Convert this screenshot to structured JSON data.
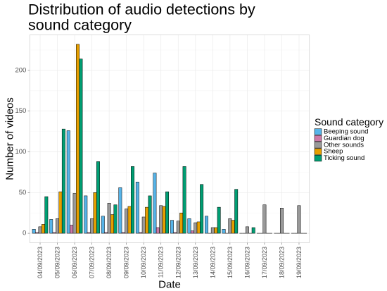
{
  "chart_data": {
    "type": "bar",
    "title": [
      "Distribution of audio detections by",
      "sound category"
    ],
    "xlabel": "Date",
    "ylabel": "Number of videos",
    "categories": [
      "04/09/2023",
      "05/09/2023",
      "06/09/2023",
      "07/09/2023",
      "08/09/2023",
      "09/09/2023",
      "10/09/2023",
      "11/09/2023",
      "12/09/2023",
      "13/09/2023",
      "14/09/2023",
      "15/09/2023",
      "16/09/2023",
      "17/09/2023",
      "18/09/2023",
      "19/09/2023"
    ],
    "yticks": [
      0,
      50,
      100,
      150,
      200
    ],
    "ylim": [
      -11.6,
      243.6
    ],
    "grid": true,
    "legend": {
      "title": "Sound category",
      "position": "right"
    },
    "series": [
      {
        "name": "Beeping sound",
        "color": "#56B4E9",
        "values": [
          5,
          17,
          126,
          46,
          21,
          56,
          63,
          74,
          16,
          18,
          21,
          5,
          0,
          0,
          0,
          0
        ]
      },
      {
        "name": "Guardian dog",
        "color": "#CC79A7",
        "values": [
          1,
          1,
          10,
          1,
          1,
          1,
          1,
          7,
          1,
          3,
          0,
          0,
          0,
          0,
          0,
          0
        ]
      },
      {
        "name": "Other sounds",
        "color": "#999999",
        "values": [
          8,
          18,
          49,
          18,
          37,
          30,
          20,
          34,
          15,
          13,
          7,
          18,
          8,
          35,
          31,
          34
        ]
      },
      {
        "name": "Sheep",
        "color": "#E69F00",
        "values": [
          11,
          51,
          232,
          50,
          23,
          33,
          32,
          33,
          25,
          14,
          7,
          16,
          0,
          0,
          0,
          0
        ]
      },
      {
        "name": "Ticking sound",
        "color": "#009E73",
        "values": [
          45,
          128,
          214,
          88,
          35,
          82,
          46,
          51,
          82,
          60,
          32,
          54,
          7,
          0,
          0,
          0
        ]
      }
    ]
  }
}
